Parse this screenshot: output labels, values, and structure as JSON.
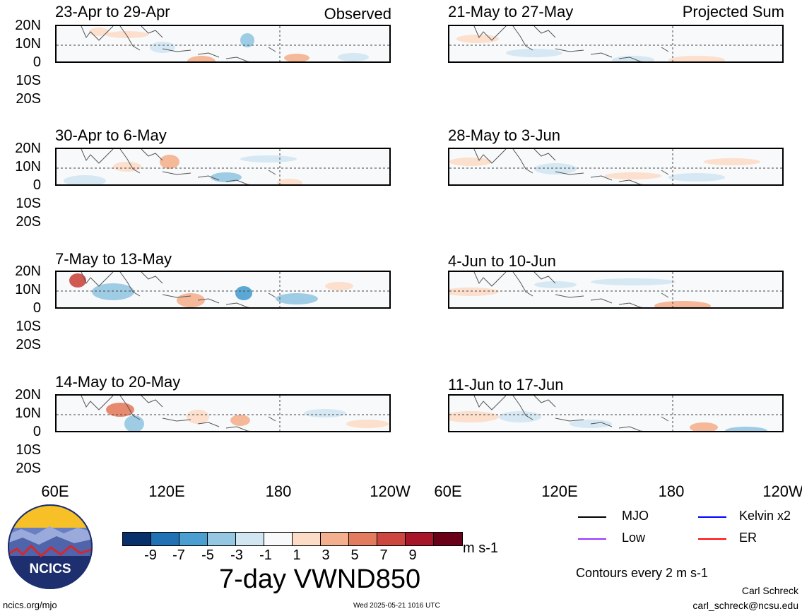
{
  "header": {
    "observed_label": "Observed",
    "projected_label": "Projected Sum"
  },
  "observed_panels": [
    {
      "title": "23-Apr to 29-Apr"
    },
    {
      "title": "30-Apr to 6-May"
    },
    {
      "title": "7-May to 13-May"
    },
    {
      "title": "14-May to 20-May"
    }
  ],
  "projected_panels": [
    {
      "title": "21-May to 27-May"
    },
    {
      "title": "28-May to 3-Jun"
    },
    {
      "title": "4-Jun to 10-Jun"
    },
    {
      "title": "11-Jun to 17-Jun"
    }
  ],
  "lat_labels": [
    "20N",
    "10N",
    "0",
    "10S",
    "20S"
  ],
  "lon_labels": [
    "60E",
    "120E",
    "180",
    "120W"
  ],
  "colorbar": {
    "colors": [
      "#08306b",
      "#2171b5",
      "#4a9fd0",
      "#95c7e2",
      "#d2e6f2",
      "#f7f9fa",
      "#fcdcc6",
      "#f4b08e",
      "#e37c5f",
      "#cc4740",
      "#a8162a",
      "#6b0019"
    ],
    "ticks": [
      "-9",
      "-7",
      "-5",
      "-3",
      "-1",
      "1",
      "3",
      "5",
      "7",
      "9"
    ],
    "units": "m s-1"
  },
  "main_title": "7-day VWND850",
  "legend": {
    "items": [
      {
        "label": "MJO",
        "color": "#000000"
      },
      {
        "label": "Kelvin x2",
        "color": "#0000ff"
      },
      {
        "label": "Low",
        "color": "#9933ff"
      },
      {
        "label": "ER",
        "color": "#ff0000"
      }
    ],
    "contour_note": "Contours every 2 m s-1"
  },
  "logo": {
    "text": "NCICS"
  },
  "footer": {
    "url": "ncics.org/mjo",
    "timestamp": "Wed 2025-05-21 1016 UTC",
    "author": "Carl Schreck",
    "email": "carl_schreck@ncsu.edu"
  }
}
